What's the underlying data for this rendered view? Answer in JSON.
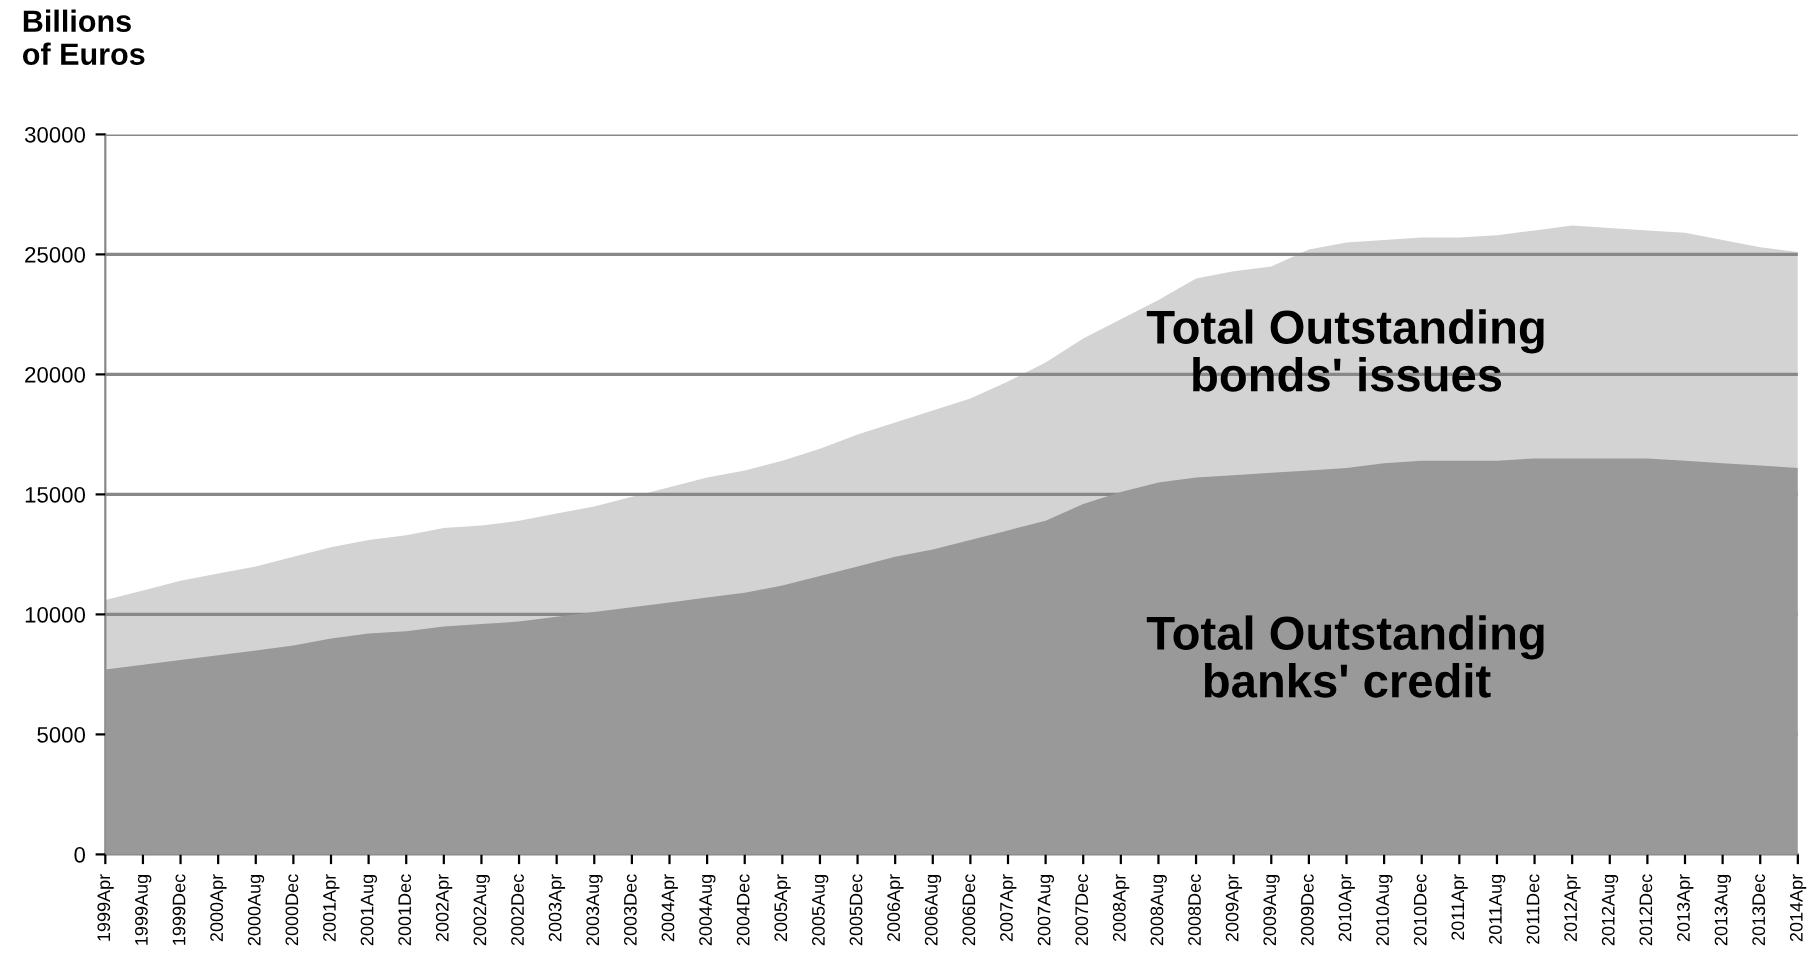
{
  "chart_data": {
    "type": "area",
    "ylabel": "Billions\nof Euros",
    "categories": [
      "1999Apr",
      "1999Aug",
      "1999Dec",
      "2000Apr",
      "2000Aug",
      "2000Dec",
      "2001Apr",
      "2001Aug",
      "2001Dec",
      "2002Apr",
      "2002Aug",
      "2002Dec",
      "2003Apr",
      "2003Aug",
      "2003Dec",
      "2004Apr",
      "2004Aug",
      "2004Dec",
      "2005Apr",
      "2005Aug",
      "2005Dec",
      "2006Apr",
      "2006Aug",
      "2006Dec",
      "2007Apr",
      "2007Aug",
      "2007Dec",
      "2008Apr",
      "2008Aug",
      "2008Dec",
      "2009Apr",
      "2009Aug",
      "2009Dec",
      "2010Apr",
      "2010Aug",
      "2010Dec",
      "2011Apr",
      "2011Aug",
      "2011Dec",
      "2012Apr",
      "2012Aug",
      "2012Dec",
      "2013Apr",
      "2013Aug",
      "2013Dec",
      "2014Apr"
    ],
    "series": [
      {
        "name": "Total Outstanding\nbonds' issues",
        "color": "#d3d3d3",
        "values": [
          10600,
          11000,
          11400,
          11700,
          12000,
          12400,
          12800,
          13100,
          13300,
          13600,
          13700,
          13900,
          14200,
          14500,
          14900,
          15300,
          15700,
          16000,
          16400,
          16900,
          17500,
          18000,
          18500,
          19000,
          19700,
          20500,
          21500,
          22300,
          23100,
          24000,
          24300,
          24500,
          25200,
          25500,
          25600,
          25700,
          25700,
          25800,
          26000,
          26200,
          26100,
          26000,
          25900,
          25600,
          25300,
          25100
        ]
      },
      {
        "name": "Total Outstanding\nbanks' credit",
        "color": "#999999",
        "values": [
          7700,
          7900,
          8100,
          8300,
          8500,
          8700,
          9000,
          9200,
          9300,
          9500,
          9600,
          9700,
          9900,
          10100,
          10300,
          10500,
          10700,
          10900,
          11200,
          11600,
          12000,
          12400,
          12700,
          13100,
          13500,
          13900,
          14600,
          15100,
          15500,
          15700,
          15800,
          15900,
          16000,
          16100,
          16300,
          16400,
          16400,
          16400,
          16500,
          16500,
          16500,
          16500,
          16400,
          16300,
          16200,
          16100
        ]
      }
    ],
    "ylim": [
      0,
      30000
    ],
    "yticks": [
      0,
      5000,
      10000,
      15000,
      20000,
      25000,
      30000
    ],
    "grid": "y",
    "legend": false
  }
}
